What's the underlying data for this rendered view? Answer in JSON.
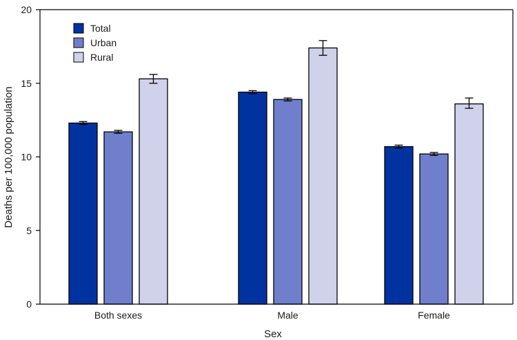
{
  "chart_data": {
    "type": "bar",
    "title": "",
    "xlabel": "Sex",
    "ylabel": "Deaths per 100,000 population",
    "ylim": [
      0,
      20
    ],
    "yticks": [
      0,
      5,
      10,
      15,
      20
    ],
    "grid": false,
    "legend_position": "top-left",
    "categories": [
      "Both sexes",
      "Male",
      "Female"
    ],
    "series": [
      {
        "name": "Total",
        "color": "#0033a0",
        "values": [
          12.3,
          14.4,
          10.7
        ],
        "ci": [
          [
            12.2,
            12.4
          ],
          [
            14.3,
            14.5
          ],
          [
            10.6,
            10.8
          ]
        ]
      },
      {
        "name": "Urban",
        "color": "#6f7fcb",
        "values": [
          11.7,
          13.9,
          10.2
        ],
        "ci": [
          [
            11.6,
            11.8
          ],
          [
            13.8,
            14.0
          ],
          [
            10.1,
            10.3
          ]
        ]
      },
      {
        "name": "Rural",
        "color": "#d0d2ec",
        "values": [
          15.3,
          17.4,
          13.6
        ],
        "ci": [
          [
            15.0,
            15.6
          ],
          [
            16.9,
            17.9
          ],
          [
            13.3,
            14.0
          ]
        ]
      }
    ]
  }
}
